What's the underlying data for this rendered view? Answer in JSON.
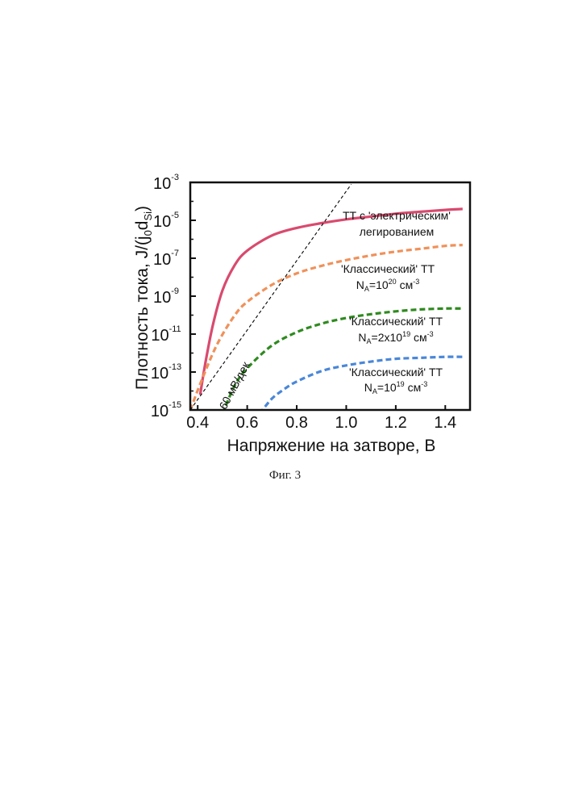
{
  "chart_data": {
    "type": "line",
    "xlabel": "Напряжение на затворе, В",
    "ylabel": "Плотность тока, J/(j0dSi)",
    "xlim": [
      0.37,
      1.5
    ],
    "ylim_log10": [
      -15,
      -3
    ],
    "y_scale": "log",
    "x_ticks": [
      "0.4",
      "0.6",
      "0.8",
      "1.0",
      "1.2",
      "1.4"
    ],
    "y_ticks": [
      {
        "mant": "10",
        "exp": "-3",
        "v": -3
      },
      {
        "mant": "10",
        "exp": "-5",
        "v": -5
      },
      {
        "mant": "10",
        "exp": "-7",
        "v": -7
      },
      {
        "mant": "10",
        "exp": "-9",
        "v": -9
      },
      {
        "mant": "10",
        "exp": "-11",
        "v": -11
      },
      {
        "mant": "10",
        "exp": "-13",
        "v": -13
      },
      {
        "mant": "10",
        "exp": "-15",
        "v": -15
      }
    ],
    "series": [
      {
        "name": "ТТ с 'электрическим' легированием",
        "color": "#d94a6e",
        "style": "solid",
        "x": [
          0.41,
          0.43,
          0.46,
          0.5,
          0.55,
          0.6,
          0.7,
          0.8,
          0.9,
          1.0,
          1.1,
          1.2,
          1.3,
          1.4,
          1.47
        ],
        "log10_y": [
          -14.2,
          -12.6,
          -10.6,
          -8.7,
          -7.35,
          -6.6,
          -5.8,
          -5.4,
          -5.15,
          -4.95,
          -4.8,
          -4.65,
          -4.55,
          -4.45,
          -4.4
        ]
      },
      {
        "name": "'Классический' ТТ NA=10^20 см^-3",
        "color": "#f0915a",
        "style": "dashed",
        "x": [
          0.37,
          0.42,
          0.48,
          0.55,
          0.6,
          0.7,
          0.8,
          0.9,
          1.0,
          1.1,
          1.2,
          1.3,
          1.4,
          1.47
        ],
        "log10_y": [
          -15,
          -13.3,
          -11.5,
          -10.0,
          -9.3,
          -8.4,
          -7.8,
          -7.4,
          -7.1,
          -6.85,
          -6.65,
          -6.5,
          -6.35,
          -6.3
        ]
      },
      {
        "name": "'Классический' ТТ NA=2x10^19 см^-3",
        "color": "#2f8a1f",
        "style": "dashed",
        "x": [
          0.5,
          0.55,
          0.6,
          0.7,
          0.8,
          0.9,
          1.0,
          1.1,
          1.2,
          1.3,
          1.4,
          1.47
        ],
        "log10_y": [
          -15.2,
          -13.7,
          -12.8,
          -11.6,
          -10.9,
          -10.45,
          -10.15,
          -9.95,
          -9.8,
          -9.7,
          -9.65,
          -9.65
        ]
      },
      {
        "name": "'Классический' ТТ NA=10^19 см^-3",
        "color": "#4a87d8",
        "style": "dashed",
        "x": [
          0.65,
          0.7,
          0.75,
          0.8,
          0.9,
          1.0,
          1.1,
          1.2,
          1.3,
          1.4,
          1.47
        ],
        "log10_y": [
          -15.2,
          -14.4,
          -13.9,
          -13.5,
          -12.95,
          -12.65,
          -12.45,
          -12.3,
          -12.25,
          -12.2,
          -12.2
        ]
      },
      {
        "name": "60 мВ/дек",
        "color": "#000000",
        "style": "thin-dashed",
        "x": [
          0.37,
          1.02
        ],
        "log10_y": [
          -15,
          -3.1
        ]
      }
    ],
    "annotations": {
      "slope": "60 мВ/дек",
      "l1a": "ТТ с 'электрическим'",
      "l1b": "легированием",
      "l2a": "'Классический' ТТ",
      "l2b_pre": "N",
      "l2b_sub": "A",
      "l2b_mid": "=10",
      "l2b_sup": "20",
      "l2b_post": " см",
      "l2b_unit_sup": "-3",
      "l3a": "'Классический' ТТ",
      "l3b_pre": "N",
      "l3b_sub": "A",
      "l3b_mid": "=2x10",
      "l3b_sup": "19",
      "l3b_post": " см",
      "l3b_unit_sup": "-3",
      "l4a": "'Классический' ТТ",
      "l4b_pre": "N",
      "l4b_sub": "A",
      "l4b_mid": "=10",
      "l4b_sup": "19",
      "l4b_post": " см",
      "l4b_unit_sup": "-3"
    },
    "ylabel_parts": {
      "main": "Плотность тока, J/(j",
      "sub0": "0",
      "mid": "d",
      "subSi": "Si",
      "end": ")"
    }
  },
  "caption": "Фиг. 3"
}
